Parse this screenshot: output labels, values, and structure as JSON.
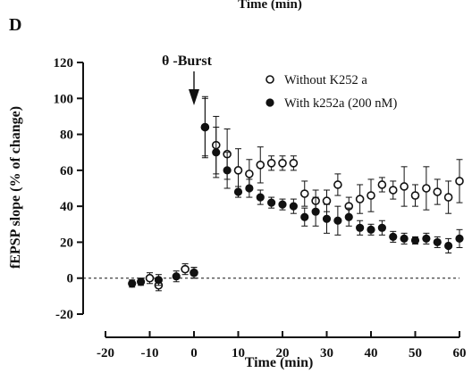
{
  "chart_data": {
    "type": "scatter",
    "top_caption": "Time (min)",
    "panel_label": "D",
    "title": "",
    "xlabel": "Time (min)",
    "ylabel": "fEPSP slope (% of change)",
    "xlim": [
      -20,
      60
    ],
    "ylim": [
      -20,
      120
    ],
    "xticks": [
      -20,
      -10,
      0,
      10,
      20,
      30,
      40,
      50,
      60
    ],
    "yticks": [
      -20,
      0,
      20,
      40,
      60,
      80,
      100,
      120
    ],
    "baseline": 0,
    "grid": false,
    "legend_position": "top-right",
    "annotation": {
      "text": "θ -Burst",
      "x": 0
    },
    "series": [
      {
        "name": "Without K252 a",
        "marker": "open-circle",
        "color": "#111111",
        "x": [
          -10,
          -8,
          -2,
          0,
          2.5,
          5,
          7.5,
          10,
          12.5,
          15,
          17.5,
          20,
          22.5,
          25,
          27.5,
          30,
          32.5,
          35,
          37.5,
          40,
          42.5,
          45,
          47.5,
          50,
          52.5,
          55,
          57.5,
          60
        ],
        "y": [
          0,
          -4,
          5,
          3,
          84,
          74,
          69,
          60,
          58,
          63,
          64,
          64,
          64,
          47,
          43,
          43,
          52,
          40,
          44,
          46,
          52,
          49,
          51,
          46,
          50,
          48,
          45,
          54
        ],
        "err": [
          3,
          3,
          3,
          3,
          16,
          16,
          14,
          12,
          8,
          10,
          4,
          4,
          4,
          7,
          6,
          6,
          6,
          5,
          8,
          9,
          4,
          5,
          11,
          6,
          12,
          7,
          9,
          12
        ]
      },
      {
        "name": "With k252a (200 nM)",
        "marker": "filled-circle",
        "color": "#111111",
        "x": [
          -14,
          -12,
          -8,
          -4,
          0,
          2.5,
          5,
          7.5,
          10,
          12.5,
          15,
          17.5,
          20,
          22.5,
          25,
          27.5,
          30,
          32.5,
          35,
          37.5,
          40,
          42.5,
          45,
          47.5,
          50,
          52.5,
          55,
          57.5,
          60
        ],
        "y": [
          -3,
          -2,
          -1,
          1,
          3,
          84,
          70,
          60,
          48,
          50,
          45,
          42,
          41,
          40,
          34,
          37,
          33,
          32,
          34,
          28,
          27,
          28,
          23,
          22,
          21,
          22,
          20,
          18,
          22
        ],
        "err": [
          2,
          2,
          3,
          3,
          3,
          17,
          14,
          10,
          3,
          5,
          4,
          3,
          3,
          4,
          5,
          8,
          8,
          8,
          5,
          4,
          3,
          4,
          3,
          3,
          2,
          3,
          3,
          4,
          5
        ]
      }
    ]
  }
}
